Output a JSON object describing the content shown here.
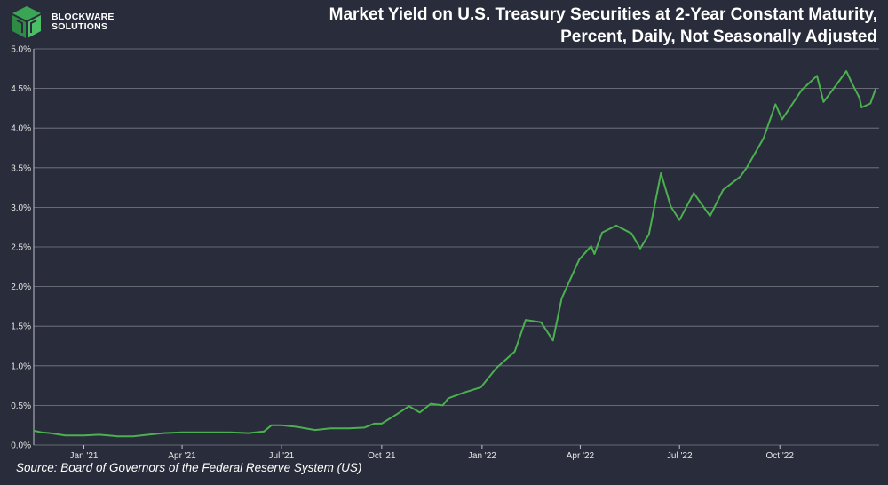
{
  "brand": {
    "line1": "BLOCKWARE",
    "line2": "SOLUTIONS"
  },
  "header": {
    "title_line1": "Market Yield on U.S. Treasury Securities at 2-Year Constant Maturity,",
    "title_line2": "Percent, Daily, Not Seasonally Adjusted"
  },
  "footer": {
    "source": "Source: Board of Governors of the Federal Reserve System (US)"
  },
  "colors": {
    "background": "#292c3a",
    "line": "#4caf50",
    "grid": "#7a7d88",
    "text": "#ffffff"
  },
  "chart_data": {
    "type": "line",
    "title": "Market Yield on U.S. Treasury Securities at 2-Year Constant Maturity, Percent, Daily, Not Seasonally Adjusted",
    "xlabel": "",
    "ylabel": "",
    "ylim": [
      0,
      5
    ],
    "y_ticks": [
      0,
      0.5,
      1,
      1.5,
      2,
      2.5,
      3,
      3.5,
      4,
      4.5,
      5
    ],
    "y_tick_labels": [
      "0.0%",
      "0.5%",
      "1.0%",
      "1.5%",
      "2.0%",
      "2.5%",
      "3.0%",
      "3.5%",
      "4.0%",
      "4.5%",
      "5.0%"
    ],
    "xlim": [
      "2020-11-16",
      "2022-12-31"
    ],
    "x_ticks": [
      "2021-01-01",
      "2021-04-01",
      "2021-07-01",
      "2021-10-01",
      "2022-01-01",
      "2022-04-01",
      "2022-07-01",
      "2022-10-01"
    ],
    "x_tick_labels": [
      "Jan '21",
      "Apr '21",
      "Jul '21",
      "Oct '21",
      "Jan '22",
      "Apr '22",
      "Jul '22",
      "Oct '22"
    ],
    "grid": true,
    "legend": "none",
    "series": [
      {
        "points": [
          [
            "2020-11-16",
            0.18
          ],
          [
            "2020-11-23",
            0.16
          ],
          [
            "2020-12-01",
            0.15
          ],
          [
            "2020-12-15",
            0.12
          ],
          [
            "2021-01-01",
            0.12
          ],
          [
            "2021-01-15",
            0.13
          ],
          [
            "2021-02-01",
            0.11
          ],
          [
            "2021-02-15",
            0.11
          ],
          [
            "2021-03-01",
            0.13
          ],
          [
            "2021-03-15",
            0.15
          ],
          [
            "2021-04-01",
            0.16
          ],
          [
            "2021-04-15",
            0.16
          ],
          [
            "2021-05-01",
            0.16
          ],
          [
            "2021-05-15",
            0.16
          ],
          [
            "2021-06-01",
            0.15
          ],
          [
            "2021-06-15",
            0.17
          ],
          [
            "2021-06-22",
            0.25
          ],
          [
            "2021-07-01",
            0.25
          ],
          [
            "2021-07-15",
            0.23
          ],
          [
            "2021-08-01",
            0.19
          ],
          [
            "2021-08-15",
            0.21
          ],
          [
            "2021-09-01",
            0.21
          ],
          [
            "2021-09-15",
            0.22
          ],
          [
            "2021-09-24",
            0.27
          ],
          [
            "2021-10-01",
            0.27
          ],
          [
            "2021-10-15",
            0.39
          ],
          [
            "2021-10-26",
            0.49
          ],
          [
            "2021-11-05",
            0.41
          ],
          [
            "2021-11-15",
            0.52
          ],
          [
            "2021-11-26",
            0.5
          ],
          [
            "2021-12-01",
            0.59
          ],
          [
            "2021-12-15",
            0.66
          ],
          [
            "2021-12-31",
            0.73
          ],
          [
            "2022-01-14",
            0.97
          ],
          [
            "2022-01-31",
            1.18
          ],
          [
            "2022-02-10",
            1.58
          ],
          [
            "2022-02-24",
            1.55
          ],
          [
            "2022-03-07",
            1.32
          ],
          [
            "2022-03-15",
            1.85
          ],
          [
            "2022-03-31",
            2.34
          ],
          [
            "2022-04-11",
            2.51
          ],
          [
            "2022-04-14",
            2.41
          ],
          [
            "2022-04-21",
            2.68
          ],
          [
            "2022-05-04",
            2.77
          ],
          [
            "2022-05-18",
            2.67
          ],
          [
            "2022-05-26",
            2.48
          ],
          [
            "2022-06-03",
            2.66
          ],
          [
            "2022-06-14",
            3.43
          ],
          [
            "2022-06-23",
            3.01
          ],
          [
            "2022-07-01",
            2.84
          ],
          [
            "2022-07-14",
            3.18
          ],
          [
            "2022-07-29",
            2.89
          ],
          [
            "2022-08-10",
            3.22
          ],
          [
            "2022-08-26",
            3.39
          ],
          [
            "2022-09-01",
            3.51
          ],
          [
            "2022-09-16",
            3.87
          ],
          [
            "2022-09-27",
            4.3
          ],
          [
            "2022-10-03",
            4.11
          ],
          [
            "2022-10-21",
            4.48
          ],
          [
            "2022-11-04",
            4.66
          ],
          [
            "2022-11-10",
            4.33
          ],
          [
            "2022-11-21",
            4.53
          ],
          [
            "2022-12-01",
            4.72
          ],
          [
            "2022-12-06",
            4.57
          ],
          [
            "2022-12-13",
            4.38
          ],
          [
            "2022-12-15",
            4.26
          ],
          [
            "2022-12-23",
            4.31
          ],
          [
            "2022-12-28",
            4.5
          ]
        ]
      }
    ]
  }
}
